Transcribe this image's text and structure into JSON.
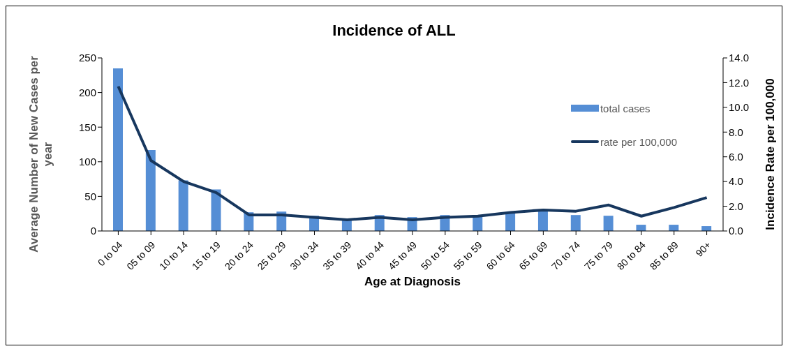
{
  "chart_data": {
    "type": "bar",
    "title": "Incidence of ALL",
    "xlabel": "Age at Diagnosis",
    "ylabel": "Average Number of New Cases per year",
    "y2label": "Incidence  Rate per 100,000",
    "categories": [
      "0 to 04",
      "05 to 09",
      "10 to 14",
      "15 to 19",
      "20 to 24",
      "25 to 29",
      "30 to 34",
      "35 to 39",
      "40 to 44",
      "45 to 49",
      "50 to 54",
      "55 to 59",
      "60 to 64",
      "65 to 69",
      "70 to 74",
      "75 to 79",
      "80 to 84",
      "85 to 89",
      "90+"
    ],
    "series": [
      {
        "name": "total cases",
        "color": "#558ed5",
        "values": [
          235,
          117,
          73,
          60,
          27,
          28,
          22,
          16,
          23,
          20,
          23,
          22,
          27,
          30,
          23,
          22,
          9,
          9,
          7
        ]
      },
      {
        "name": "rate per 100,000",
        "type": "line",
        "axis": "y2",
        "color": "#17375e",
        "values": [
          11.7,
          5.7,
          4.0,
          3.1,
          1.3,
          1.3,
          1.1,
          0.9,
          1.1,
          0.9,
          1.1,
          1.2,
          1.5,
          1.7,
          1.6,
          2.1,
          1.2,
          1.9,
          2.7
        ]
      }
    ],
    "ylim": [
      0,
      250
    ],
    "yticks": [
      0,
      50,
      100,
      150,
      200,
      250
    ],
    "y2lim": [
      0,
      14
    ],
    "y2ticks": [
      {
        "value": 0,
        "label": "0.0"
      },
      {
        "value": 2,
        "label": "2.0"
      },
      {
        "value": 4,
        "label": "4.0"
      },
      {
        "value": 6,
        "label": "6.0"
      },
      {
        "value": 8,
        "label": "8.0"
      },
      {
        "value": 10,
        "label": "10.0"
      },
      {
        "value": 12,
        "label": "12.0"
      },
      {
        "value": 14,
        "label": "14.0"
      }
    ],
    "legend": "top right",
    "grid": false,
    "marker": "none",
    "line_style": "solid"
  }
}
